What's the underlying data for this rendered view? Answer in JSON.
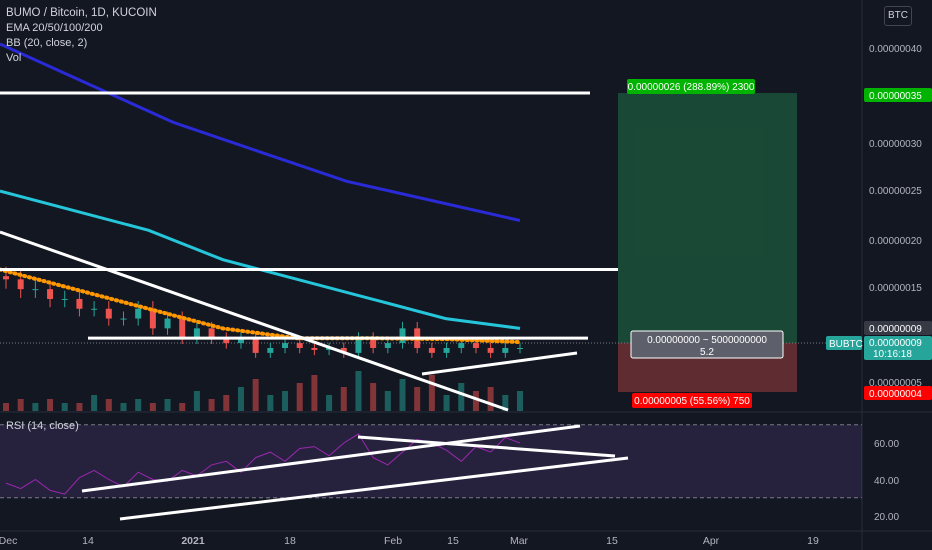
{
  "legend": {
    "symbol": "BUMO / Bitcoin, 1D, KUCOIN",
    "ema": "EMA 20/50/100/200",
    "bb": "BB (20, close, 2)",
    "vol": "Vol"
  },
  "currency_button": "BTC",
  "rsi_label": "RSI (14, close)",
  "symbol_tag": "BUBTC",
  "countdown": "10:16:18",
  "colors": {
    "background": "#131722",
    "up": "#26a69a",
    "down": "#ef5350",
    "ema20": "#ef5350",
    "ema50": "#ff9800",
    "ema100": "#26c6da",
    "ema200": "#2a2ad6",
    "rsi": "#9c27b0",
    "drawn_lines": "#ffffff"
  },
  "chart_data": {
    "type": "candlestick",
    "x_axis_labels": [
      "Dec",
      "14",
      "2021",
      "18",
      "Feb",
      "15",
      "Mar",
      "15",
      "Apr",
      "19"
    ],
    "price_axis": {
      "ticks": [
        "0.00000040",
        "0.00000035",
        "0.00000030",
        "0.00000025",
        "0.00000020",
        "0.00000015",
        "0.00000009",
        "0.00000005",
        "0.00000004"
      ],
      "highlighted": {
        "target": "0.00000035",
        "current": "0.00000009",
        "stop": "0.00000004"
      }
    },
    "rsi_axis": {
      "ticks": [
        "60.00",
        "40.00",
        "20.00"
      ],
      "upper_band": 70,
      "lower_band": 30
    },
    "position": {
      "entry": 9e-08,
      "target": 3.5e-07,
      "stop": 4e-08,
      "profit_label": "0.00000026 (288.89%) 2300",
      "loss_label": "0.00000005 (55.56%) 750",
      "center_label_1": "0.00000000 ~ 5000000000",
      "center_label_2": "5.2"
    },
    "horizontal_levels": [
      3.5e-07,
      1.7e-07,
      1e-07
    ],
    "ema200": [
      4e-07,
      3.6e-07,
      3.2e-07,
      2.9e-07,
      2.6e-07,
      2.4e-07,
      2.2e-07
    ],
    "ema100": [
      2.5e-07,
      2.3e-07,
      2.1e-07,
      1.8e-07,
      1.6e-07,
      1.4e-07,
      1.2e-07,
      1.1e-07
    ],
    "ema50": [
      1.7e-07,
      1.5e-07,
      1.3e-07,
      1.1e-07,
      1e-07,
      1e-07,
      9.9e-08,
      9.6e-08
    ],
    "closes": [
      1.6e-07,
      1.5e-07,
      1.5e-07,
      1.4e-07,
      1.4e-07,
      1.3e-07,
      1.3e-07,
      1.2e-07,
      1.2e-07,
      1.3e-07,
      1.1e-07,
      1.2e-07,
      1e-07,
      1.1e-07,
      1e-07,
      9.5e-08,
      1e-07,
      8.5e-08,
      9e-08,
      9.5e-08,
      9e-08,
      8.8e-08,
      9e-08,
      8.5e-08,
      1e-07,
      9e-08,
      9.5e-08,
      1.1e-07,
      9e-08,
      8.5e-08,
      9e-08,
      9.5e-08,
      9e-08,
      8.5e-08,
      9e-08,
      9e-08
    ],
    "volumes": [
      2,
      3,
      2,
      3,
      2,
      2,
      4,
      3,
      2,
      3,
      2,
      3,
      2,
      5,
      3,
      4,
      6,
      8,
      4,
      5,
      7,
      9,
      4,
      6,
      10,
      7,
      5,
      8,
      6,
      9,
      4,
      7,
      5,
      6,
      4,
      5
    ],
    "rsi": [
      38,
      35,
      40,
      34,
      32,
      41,
      45,
      40,
      36,
      44,
      40,
      39,
      45,
      42,
      48,
      50,
      44,
      52,
      55,
      50,
      57,
      58,
      53,
      60,
      65,
      52,
      48,
      55,
      62,
      60,
      56,
      50,
      58,
      55,
      63,
      60
    ]
  }
}
